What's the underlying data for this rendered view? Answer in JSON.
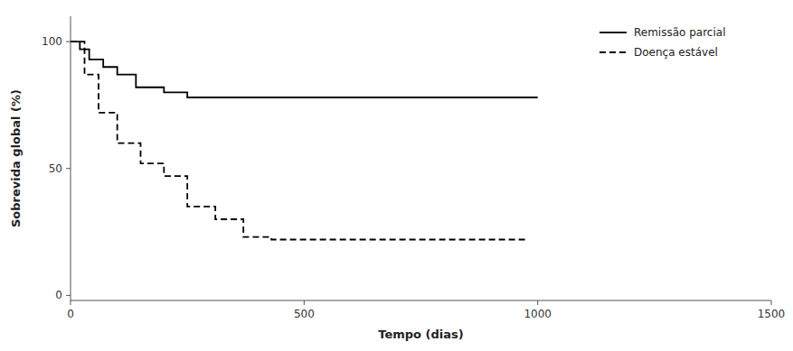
{
  "chart_data": {
    "type": "line",
    "xlabel": "Tempo (dias)",
    "ylabel": "Sobrevida global (%)",
    "xlim": [
      0,
      1500
    ],
    "ylim": [
      -2,
      110
    ],
    "xticks": [
      0,
      500,
      1000,
      1500
    ],
    "yticks": [
      0,
      50,
      100
    ],
    "grid": false,
    "legend": "upper right",
    "series": [
      {
        "name": "Remissão parcial",
        "color": "#000000",
        "line_style": "solid",
        "x": [
          0,
          20,
          20,
          40,
          40,
          70,
          70,
          100,
          100,
          140,
          140,
          200,
          200,
          250,
          250,
          1000,
          1000
        ],
        "values": [
          100,
          100,
          97,
          97,
          93,
          93,
          90,
          90,
          87,
          87,
          82,
          82,
          80,
          80,
          78,
          78,
          78
        ]
      },
      {
        "name": "Doença estável",
        "color": "#000000",
        "line_style": "dashed",
        "x": [
          0,
          30,
          30,
          60,
          60,
          100,
          100,
          150,
          150,
          200,
          200,
          250,
          250,
          310,
          310,
          370,
          370,
          430,
          430,
          480,
          480,
          980,
          980
        ],
        "values": [
          100,
          100,
          87,
          87,
          72,
          72,
          60,
          60,
          52,
          52,
          47,
          47,
          35,
          35,
          30,
          30,
          23,
          23,
          22,
          22,
          22,
          22,
          22
        ]
      }
    ]
  }
}
